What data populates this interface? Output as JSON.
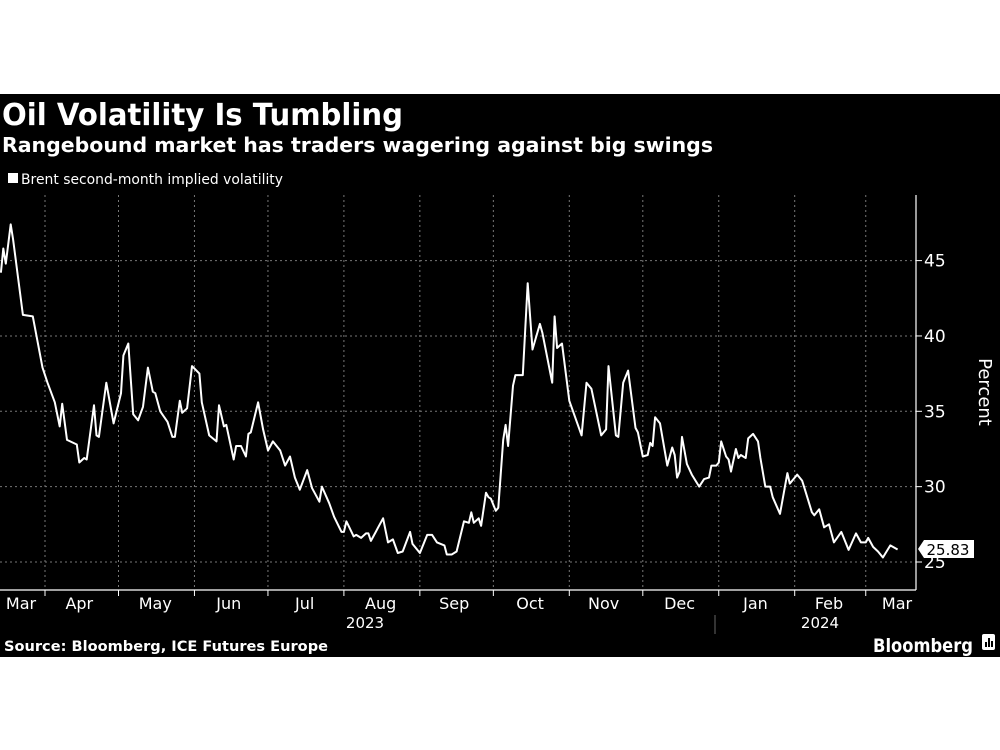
{
  "chart_data": {
    "type": "line",
    "title": "Oil Volatility Is Tumbling",
    "subtitle": "Rangebound market has traders wagering against big swings",
    "legend": "Brent second-month implied volatility",
    "legend_placement": "top-left",
    "ylabel": "Percent",
    "ylim": [
      23,
      49
    ],
    "yticks": [
      25,
      30,
      35,
      40,
      45
    ],
    "y_axis_side": "right",
    "grid": true,
    "xlim": [
      "2023-03-13",
      "2024-03-20"
    ],
    "month_labels": [
      "Mar",
      "Apr",
      "May",
      "Jun",
      "Jul",
      "Aug",
      "Sep",
      "Oct",
      "Nov",
      "Dec",
      "Jan",
      "Feb",
      "Mar"
    ],
    "year_labels": [
      "2023",
      "2024"
    ],
    "last_value_label": "25.83",
    "colors": {
      "background": "#000000",
      "line": "#ffffff"
    },
    "series": [
      {
        "name": "Brent second-month implied volatility",
        "points": [
          [
            "2023-03-14",
            44.2
          ],
          [
            "2023-03-15",
            45.8
          ],
          [
            "2023-03-16",
            44.8
          ],
          [
            "2023-03-18",
            47.4
          ],
          [
            "2023-03-19",
            46.4
          ],
          [
            "2023-03-21",
            43.9
          ],
          [
            "2023-03-23",
            41.4
          ],
          [
            "2023-03-27",
            41.3
          ],
          [
            "2023-03-31",
            37.9
          ],
          [
            "2023-04-02",
            36.9
          ],
          [
            "2023-04-05",
            35.6
          ],
          [
            "2023-04-07",
            34.0
          ],
          [
            "2023-04-08",
            35.5
          ],
          [
            "2023-04-10",
            33.1
          ],
          [
            "2023-04-14",
            32.8
          ],
          [
            "2023-04-15",
            31.6
          ],
          [
            "2023-04-17",
            31.9
          ],
          [
            "2023-04-18",
            31.8
          ],
          [
            "2023-04-21",
            35.4
          ],
          [
            "2023-04-22",
            33.4
          ],
          [
            "2023-04-23",
            33.3
          ],
          [
            "2023-04-26",
            36.9
          ],
          [
            "2023-04-29",
            34.2
          ],
          [
            "2023-05-02",
            36.2
          ],
          [
            "2023-05-03",
            38.7
          ],
          [
            "2023-05-05",
            39.5
          ],
          [
            "2023-05-07",
            34.8
          ],
          [
            "2023-05-09",
            34.4
          ],
          [
            "2023-05-11",
            35.3
          ],
          [
            "2023-05-13",
            37.9
          ],
          [
            "2023-05-15",
            36.3
          ],
          [
            "2023-05-16",
            36.2
          ],
          [
            "2023-05-18",
            35.0
          ],
          [
            "2023-05-21",
            34.3
          ],
          [
            "2023-05-23",
            33.3
          ],
          [
            "2023-05-24",
            33.3
          ],
          [
            "2023-05-26",
            35.7
          ],
          [
            "2023-05-27",
            34.9
          ],
          [
            "2023-05-29",
            35.2
          ],
          [
            "2023-05-31",
            38.0
          ],
          [
            "2023-06-03",
            37.5
          ],
          [
            "2023-06-04",
            35.6
          ],
          [
            "2023-06-07",
            33.4
          ],
          [
            "2023-06-10",
            33.0
          ],
          [
            "2023-06-11",
            35.4
          ],
          [
            "2023-06-13",
            34.0
          ],
          [
            "2023-06-14",
            34.1
          ],
          [
            "2023-06-17",
            31.8
          ],
          [
            "2023-06-18",
            32.7
          ],
          [
            "2023-06-20",
            32.7
          ],
          [
            "2023-06-22",
            32.0
          ],
          [
            "2023-06-23",
            33.5
          ],
          [
            "2023-06-24",
            33.6
          ],
          [
            "2023-06-27",
            35.6
          ],
          [
            "2023-06-29",
            33.8
          ],
          [
            "2023-07-01",
            32.4
          ],
          [
            "2023-07-03",
            33.0
          ],
          [
            "2023-07-05",
            32.6
          ],
          [
            "2023-07-06",
            32.4
          ],
          [
            "2023-07-08",
            31.4
          ],
          [
            "2023-07-10",
            32.0
          ],
          [
            "2023-07-12",
            30.6
          ],
          [
            "2023-07-14",
            29.8
          ],
          [
            "2023-07-17",
            31.1
          ],
          [
            "2023-07-19",
            29.9
          ],
          [
            "2023-07-22",
            29.0
          ],
          [
            "2023-07-23",
            30.0
          ],
          [
            "2023-07-26",
            28.9
          ],
          [
            "2023-07-28",
            28.0
          ],
          [
            "2023-07-31",
            27.0
          ],
          [
            "2023-08-01",
            27.0
          ],
          [
            "2023-08-02",
            27.7
          ],
          [
            "2023-08-05",
            26.7
          ],
          [
            "2023-08-06",
            26.8
          ],
          [
            "2023-08-08",
            26.6
          ],
          [
            "2023-08-10",
            26.9
          ],
          [
            "2023-08-11",
            26.9
          ],
          [
            "2023-08-12",
            26.4
          ],
          [
            "2023-08-14",
            27.0
          ],
          [
            "2023-08-15",
            27.3
          ],
          [
            "2023-08-17",
            27.9
          ],
          [
            "2023-08-19",
            26.3
          ],
          [
            "2023-08-21",
            26.5
          ],
          [
            "2023-08-23",
            25.6
          ],
          [
            "2023-08-25",
            25.7
          ],
          [
            "2023-08-28",
            27.0
          ],
          [
            "2023-08-29",
            26.2
          ],
          [
            "2023-09-01",
            25.6
          ],
          [
            "2023-09-04",
            26.8
          ],
          [
            "2023-09-06",
            26.8
          ],
          [
            "2023-09-08",
            26.3
          ],
          [
            "2023-09-11",
            26.1
          ],
          [
            "2023-09-12",
            25.5
          ],
          [
            "2023-09-14",
            25.5
          ],
          [
            "2023-09-16",
            25.7
          ],
          [
            "2023-09-19",
            27.7
          ],
          [
            "2023-09-21",
            27.6
          ],
          [
            "2023-09-22",
            28.3
          ],
          [
            "2023-09-23",
            27.6
          ],
          [
            "2023-09-25",
            27.9
          ],
          [
            "2023-09-26",
            27.4
          ],
          [
            "2023-09-28",
            29.6
          ],
          [
            "2023-09-29",
            29.3
          ],
          [
            "2023-09-30",
            29.2
          ],
          [
            "2023-10-02",
            28.4
          ],
          [
            "2023-10-03",
            28.6
          ],
          [
            "2023-10-05",
            33.1
          ],
          [
            "2023-10-06",
            34.1
          ],
          [
            "2023-10-07",
            32.7
          ],
          [
            "2023-10-09",
            36.7
          ],
          [
            "2023-10-10",
            37.4
          ],
          [
            "2023-10-13",
            37.4
          ],
          [
            "2023-10-15",
            43.5
          ],
          [
            "2023-10-17",
            39.1
          ],
          [
            "2023-10-20",
            40.8
          ],
          [
            "2023-10-21",
            40.2
          ],
          [
            "2023-10-25",
            36.9
          ],
          [
            "2023-10-26",
            41.3
          ],
          [
            "2023-10-27",
            39.2
          ],
          [
            "2023-10-29",
            39.5
          ],
          [
            "2023-11-01",
            35.7
          ],
          [
            "2023-11-06",
            33.4
          ],
          [
            "2023-11-08",
            36.9
          ],
          [
            "2023-11-10",
            36.5
          ],
          [
            "2023-11-14",
            33.4
          ],
          [
            "2023-11-16",
            33.8
          ],
          [
            "2023-11-17",
            38.0
          ],
          [
            "2023-11-20",
            33.4
          ],
          [
            "2023-11-21",
            33.3
          ],
          [
            "2023-11-23",
            36.9
          ],
          [
            "2023-11-25",
            37.7
          ],
          [
            "2023-11-28",
            33.9
          ],
          [
            "2023-11-29",
            33.6
          ],
          [
            "2023-12-01",
            32.0
          ],
          [
            "2023-12-03",
            32.1
          ],
          [
            "2023-12-04",
            32.9
          ],
          [
            "2023-12-05",
            32.7
          ],
          [
            "2023-12-06",
            34.6
          ],
          [
            "2023-12-08",
            34.2
          ],
          [
            "2023-12-11",
            31.4
          ],
          [
            "2023-12-13",
            32.6
          ],
          [
            "2023-12-14",
            32.1
          ],
          [
            "2023-12-15",
            30.6
          ],
          [
            "2023-12-16",
            31.0
          ],
          [
            "2023-12-17",
            33.3
          ],
          [
            "2023-12-19",
            31.5
          ],
          [
            "2023-12-21",
            30.8
          ],
          [
            "2023-12-24",
            30.0
          ],
          [
            "2023-12-26",
            30.5
          ],
          [
            "2023-12-28",
            30.6
          ],
          [
            "2023-12-29",
            31.4
          ],
          [
            "2023-12-31",
            31.4
          ],
          [
            "2024-01-01",
            31.6
          ],
          [
            "2024-01-02",
            33.0
          ],
          [
            "2024-01-04",
            32.0
          ],
          [
            "2024-01-05",
            31.8
          ],
          [
            "2024-01-06",
            31.0
          ],
          [
            "2024-01-08",
            32.5
          ],
          [
            "2024-01-09",
            31.9
          ],
          [
            "2024-01-10",
            32.1
          ],
          [
            "2024-01-12",
            31.9
          ],
          [
            "2024-01-13",
            33.2
          ],
          [
            "2024-01-15",
            33.5
          ],
          [
            "2024-01-17",
            33.0
          ],
          [
            "2024-01-18",
            31.9
          ],
          [
            "2024-01-20",
            30.0
          ],
          [
            "2024-01-22",
            30.0
          ],
          [
            "2024-01-23",
            29.3
          ],
          [
            "2024-01-26",
            28.2
          ],
          [
            "2024-01-29",
            30.9
          ],
          [
            "2024-01-30",
            30.2
          ],
          [
            "2024-02-02",
            30.8
          ],
          [
            "2024-02-04",
            30.4
          ],
          [
            "2024-02-05",
            29.9
          ],
          [
            "2024-02-08",
            28.3
          ],
          [
            "2024-02-09",
            28.1
          ],
          [
            "2024-02-11",
            28.5
          ],
          [
            "2024-02-13",
            27.3
          ],
          [
            "2024-02-15",
            27.5
          ],
          [
            "2024-02-17",
            26.3
          ],
          [
            "2024-02-20",
            27.0
          ],
          [
            "2024-02-23",
            25.8
          ],
          [
            "2024-02-26",
            26.9
          ],
          [
            "2024-02-28",
            26.3
          ],
          [
            "2024-03-01",
            26.3
          ],
          [
            "2024-03-02",
            26.6
          ],
          [
            "2024-03-04",
            26.0
          ],
          [
            "2024-03-06",
            25.7
          ],
          [
            "2024-03-08",
            25.3
          ],
          [
            "2024-03-11",
            26.1
          ],
          [
            "2024-03-14",
            25.83
          ]
        ]
      }
    ]
  },
  "footer": {
    "source": "Source: Bloomberg, ICE Futures Europe",
    "brand": "Bloomberg",
    "brand_icon": "bloomberg-chart-icon"
  }
}
